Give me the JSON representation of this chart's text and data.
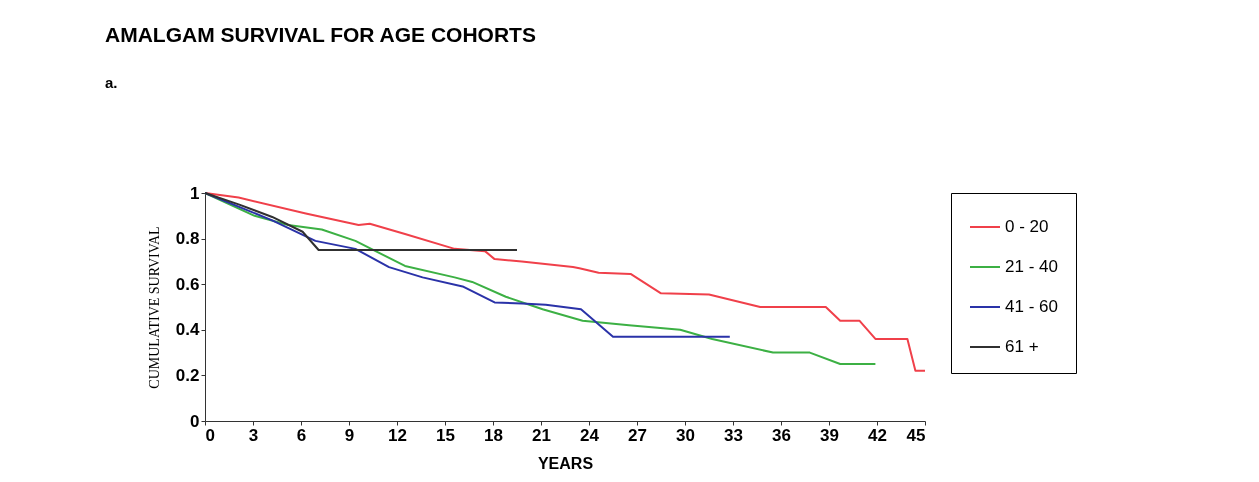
{
  "chart_data": {
    "type": "line",
    "title": "AMALGAM SURVIVAL FOR AGE COHORTS",
    "xlabel": "YEARS",
    "ylabel": "CUMULATIVE SURVIVAL",
    "annotations": [
      "a."
    ],
    "xlim": [
      0,
      45
    ],
    "xticks": [
      0,
      3,
      6,
      9,
      12,
      15,
      18,
      21,
      24,
      27,
      30,
      33,
      36,
      39,
      42,
      45
    ],
    "ylim": [
      0,
      1
    ],
    "yticks": [
      0,
      0.2,
      0.4,
      0.6,
      0.8,
      1
    ],
    "grid": false,
    "legend": "right",
    "marker": "none",
    "line_style": "solid",
    "series": [
      {
        "name": "0 - 20",
        "color": "#f0404a",
        "x": [
          0,
          2.1,
          6.3,
          9.6,
          10.3,
          12.5,
          15.6,
          17.5,
          18.1,
          19.8,
          23,
          23.4,
          24.6,
          26.6,
          28.5,
          31.5,
          34.7,
          38.8,
          39.7,
          40.9,
          41.9,
          43.9,
          44.4,
          45
        ],
        "values": [
          1,
          0.98,
          0.91,
          0.86,
          0.865,
          0.82,
          0.755,
          0.745,
          0.71,
          0.7,
          0.675,
          0.67,
          0.65,
          0.645,
          0.56,
          0.555,
          0.5,
          0.5,
          0.44,
          0.44,
          0.36,
          0.36,
          0.22,
          0.22
        ]
      },
      {
        "name": "21 - 40",
        "color": "#3cb044",
        "x": [
          0,
          3.1,
          5.2,
          7.3,
          9.4,
          12.5,
          15.6,
          16.7,
          18.8,
          21.1,
          23.6,
          26.5,
          29.7,
          31.7,
          35.5,
          37.8,
          39.7,
          41.9
        ],
        "values": [
          1,
          0.9,
          0.86,
          0.84,
          0.79,
          0.68,
          0.63,
          0.61,
          0.545,
          0.49,
          0.44,
          0.42,
          0.4,
          0.36,
          0.3,
          0.3,
          0.25,
          0.25
        ]
      },
      {
        "name": "41 - 60",
        "color": "#2a32a8",
        "x": [
          0,
          4.2,
          6.9,
          9.4,
          11.5,
          13.6,
          16.1,
          18.1,
          19.8,
          21.3,
          23.5,
          25.5,
          32.8
        ],
        "values": [
          1,
          0.88,
          0.79,
          0.755,
          0.675,
          0.63,
          0.59,
          0.52,
          0.515,
          0.51,
          0.49,
          0.37,
          0.37
        ]
      },
      {
        "name": "61 +",
        "color": "#303030",
        "x": [
          0,
          2.1,
          4.2,
          6.1,
          7.1,
          19.5
        ],
        "values": [
          1,
          0.95,
          0.895,
          0.83,
          0.75,
          0.75
        ]
      }
    ]
  }
}
